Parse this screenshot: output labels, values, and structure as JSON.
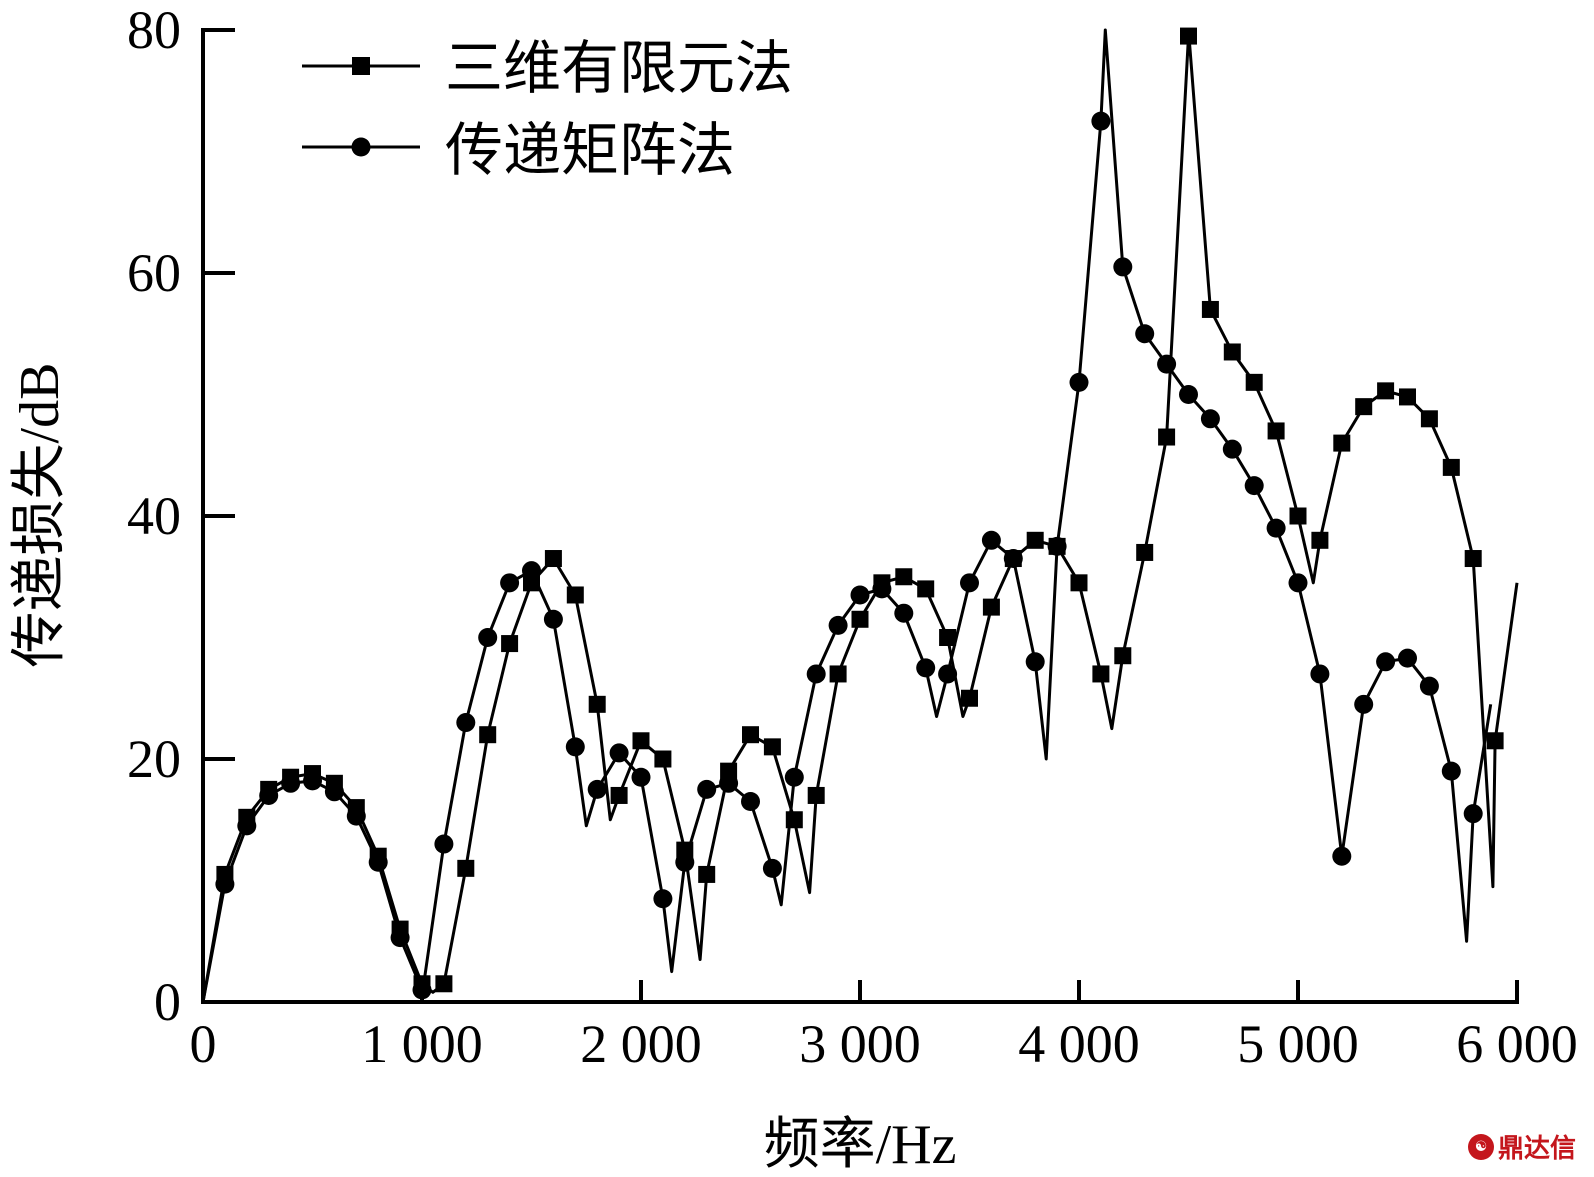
{
  "chart_data": {
    "type": "line",
    "title": "",
    "xlabel": "频率/Hz",
    "ylabel": "传递损失/dB",
    "xlim": [
      0,
      6000
    ],
    "ylim": [
      0,
      80
    ],
    "xticks": [
      0,
      1000,
      2000,
      3000,
      4000,
      5000,
      6000
    ],
    "xtick_labels": [
      "0",
      "1 000",
      "2 000",
      "3 000",
      "4 000",
      "5 000",
      "6 000"
    ],
    "yticks": [
      0,
      20,
      40,
      60,
      80
    ],
    "ytick_labels": [
      "0",
      "20",
      "40",
      "60",
      "80"
    ],
    "grid": false,
    "legend_position": "upper left",
    "series": [
      {
        "name": "三维有限元法",
        "marker": "square",
        "x": [
          0,
          100,
          200,
          300,
          400,
          500,
          600,
          700,
          800,
          900,
          1000,
          1100,
          1200,
          1300,
          1400,
          1500,
          1600,
          1700,
          1800,
          1900,
          2000,
          2100,
          2200,
          2300,
          2400,
          2500,
          2600,
          2700,
          2800,
          2900,
          3000,
          3100,
          3200,
          3300,
          3400,
          3500,
          3600,
          3700,
          3800,
          3900,
          4000,
          4100,
          4200,
          4300,
          4400,
          4500,
          4600,
          4700,
          4800,
          4900,
          5000,
          5100,
          5200,
          5300,
          5400,
          5500,
          5600,
          5700,
          5800,
          5900
        ],
        "values": [
          0,
          10.5,
          15.2,
          17.5,
          18.5,
          18.8,
          18,
          16,
          12,
          6,
          1.5,
          1.5,
          11,
          22,
          29.5,
          34.5,
          36.5,
          33.5,
          24.5,
          17,
          21.5,
          20,
          12.5,
          10.5,
          19,
          22,
          21,
          15,
          17,
          27,
          31.5,
          34.5,
          35,
          34,
          30,
          25,
          32.5,
          36.5,
          38,
          37.5,
          34.5,
          27,
          28.5,
          37,
          46.5,
          79.5,
          57,
          53.5,
          51,
          47,
          40,
          38,
          46,
          49,
          50.3,
          49.8,
          48,
          44,
          36.5,
          21.5
        ]
      },
      {
        "name": "传递矩阵法",
        "marker": "circle",
        "x": [
          0,
          100,
          200,
          300,
          400,
          500,
          600,
          700,
          800,
          900,
          1000,
          1100,
          1200,
          1300,
          1400,
          1500,
          1600,
          1700,
          1800,
          1900,
          2000,
          2100,
          2200,
          2300,
          2400,
          2500,
          2600,
          2700,
          2800,
          2900,
          3000,
          3100,
          3200,
          3300,
          3400,
          3500,
          3600,
          3700,
          3800,
          3900,
          4000,
          4100,
          4200,
          4300,
          4400,
          4500,
          4600,
          4700,
          4800,
          4900,
          5000,
          5100,
          5200,
          5300,
          5400,
          5500,
          5600,
          5700,
          5800
        ],
        "values": [
          0,
          9.7,
          14.5,
          17,
          18,
          18.2,
          17.3,
          15.3,
          11.5,
          5.3,
          1,
          13,
          23,
          30,
          34.5,
          35.5,
          31.5,
          21,
          17.5,
          20.5,
          18.5,
          8.5,
          11.5,
          17.5,
          18,
          16.5,
          11,
          18.5,
          27,
          31,
          33.5,
          34,
          32,
          27.5,
          27,
          34.5,
          38,
          36.5,
          28,
          37.5,
          51,
          72.5,
          60.5,
          55,
          52.5,
          50,
          48,
          45.5,
          42.5,
          39,
          34.5,
          27,
          12,
          24.5,
          28,
          28.3,
          26,
          19,
          15.5
        ]
      }
    ],
    "curve_dips": {
      "三维有限元法": [
        [
          1050,
          0.8
        ],
        [
          1860,
          15
        ],
        [
          2270,
          3.5
        ],
        [
          2770,
          9
        ],
        [
          3470,
          23.5
        ],
        [
          4150,
          22.5
        ],
        [
          4500,
          80
        ],
        [
          5070,
          34.5
        ],
        [
          5890,
          9.5
        ],
        [
          6000,
          34.5
        ]
      ],
      "传递矩阵法": [
        [
          1000,
          0.5
        ],
        [
          1750,
          14.5
        ],
        [
          2140,
          2.5
        ],
        [
          2640,
          8
        ],
        [
          3350,
          23.5
        ],
        [
          3850,
          20
        ],
        [
          4120,
          80
        ],
        [
          5200,
          12
        ],
        [
          5770,
          5
        ],
        [
          5880,
          24.5
        ]
      ]
    }
  },
  "legend": {
    "items": [
      {
        "label": "三维有限元法",
        "marker": "square"
      },
      {
        "label": "传递矩阵法",
        "marker": "circle"
      }
    ]
  },
  "watermark": {
    "text": "鼎达信"
  }
}
